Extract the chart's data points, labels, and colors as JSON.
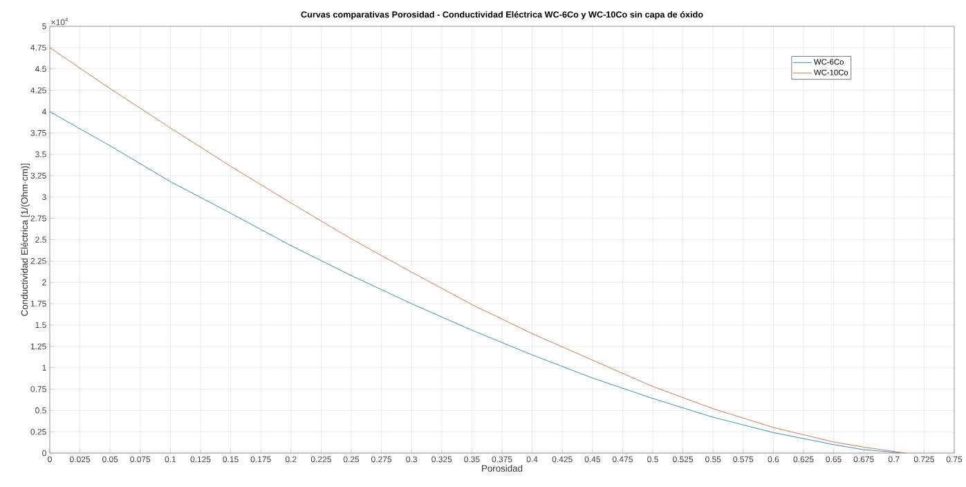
{
  "chart_data": {
    "type": "line",
    "title": "Curvas comparativas Porosidad - Conductividad Eléctrica WC-6Co y WC-10Co sin capa de óxido",
    "xlabel": "Porosidad",
    "ylabel": "Conductividad Eléctrica [1/(Ohm·cm)]",
    "annotations": [
      "×10$^{4}$"
    ],
    "series": [
      {
        "name": "WC-6Co",
        "color": "#0072bd",
        "x": [
          0,
          0.05,
          0.1,
          0.15,
          0.2,
          0.25,
          0.3,
          0.35,
          0.4,
          0.45,
          0.5,
          0.55,
          0.6,
          0.65,
          0.675,
          0.7,
          0.705
        ],
        "values": [
          4,
          3.6,
          3.18,
          2.81,
          2.43,
          2.08,
          1.75,
          1.44,
          1.15,
          0.88,
          0.64,
          0.42,
          0.24,
          0.1,
          0.04,
          0.01,
          0
        ]
      },
      {
        "name": "WC-10Co",
        "color": "#d95319",
        "x": [
          0,
          0.05,
          0.1,
          0.15,
          0.2,
          0.25,
          0.3,
          0.35,
          0.4,
          0.45,
          0.5,
          0.55,
          0.6,
          0.65,
          0.675,
          0.7,
          0.71
        ],
        "values": [
          4.75,
          4.27,
          3.81,
          3.36,
          2.93,
          2.51,
          2.12,
          1.74,
          1.4,
          1.09,
          0.78,
          0.52,
          0.3,
          0.13,
          0.07,
          0.02,
          0
        ]
      }
    ],
    "xlim": [
      0,
      0.75
    ],
    "ylim": [
      0,
      5
    ],
    "xticks": [
      0,
      0.025,
      0.05,
      0.075,
      0.1,
      0.125,
      0.15,
      0.175,
      0.2,
      0.225,
      0.25,
      0.275,
      0.3,
      0.325,
      0.35,
      0.375,
      0.4,
      0.425,
      0.45,
      0.475,
      0.5,
      0.525,
      0.55,
      0.575,
      0.6,
      0.625,
      0.65,
      0.675,
      0.7,
      0.725,
      0.75
    ],
    "yticks": [
      0,
      0.25,
      0.5,
      0.75,
      1,
      1.25,
      1.5,
      1.75,
      2,
      2.25,
      2.5,
      2.75,
      3,
      3.25,
      3.5,
      3.75,
      4,
      4.25,
      4.5,
      4.75,
      5
    ],
    "grid": true,
    "legend": "top right",
    "marker": "none",
    "line_style": "solid"
  }
}
